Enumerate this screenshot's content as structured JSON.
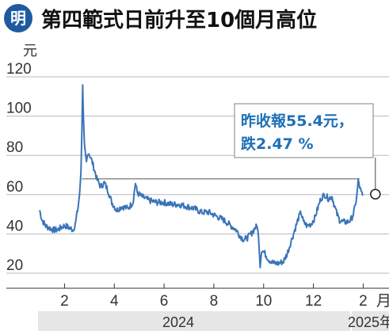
{
  "header": {
    "logo_text": "明",
    "title": "第四範式日前升至10個月高位"
  },
  "chart_data": {
    "type": "line",
    "title": "第四範式日前升至10個月高位",
    "ylabel": "元",
    "ylim": [
      14,
      124
    ],
    "yticks": [
      20,
      40,
      60,
      80,
      100,
      120
    ],
    "x_tick_labels": [
      "2",
      "4",
      "6",
      "8",
      "10",
      "12",
      "2",
      "月"
    ],
    "year_labels": [
      "2024",
      "2025年"
    ],
    "reference_line": 64,
    "annotation": {
      "line1": "昨收報55.4元，",
      "line2": "跌2.47 %"
    },
    "last_value": 55.4,
    "colors": {
      "line": "#3a74b8",
      "annotation_text": "#1f6fb5",
      "annotation_border": "#7f7f7f",
      "year_band": "#e6e6e6",
      "logo": "#1f5a9f"
    },
    "series": [
      {
        "values": [
          {
            "m": 1.0,
            "v": 48
          },
          {
            "m": 1.1,
            "v": 43
          },
          {
            "m": 1.25,
            "v": 40
          },
          {
            "m": 1.4,
            "v": 39
          },
          {
            "m": 1.55,
            "v": 38
          },
          {
            "m": 1.7,
            "v": 38
          },
          {
            "m": 1.85,
            "v": 39
          },
          {
            "m": 1.95,
            "v": 40
          },
          {
            "m": 2.05,
            "v": 40
          },
          {
            "m": 2.2,
            "v": 39
          },
          {
            "m": 2.35,
            "v": 38
          },
          {
            "m": 2.45,
            "v": 42
          },
          {
            "m": 2.55,
            "v": 50
          },
          {
            "m": 2.62,
            "v": 58
          },
          {
            "m": 2.66,
            "v": 68
          },
          {
            "m": 2.7,
            "v": 90
          },
          {
            "m": 2.73,
            "v": 113
          },
          {
            "m": 2.76,
            "v": 95
          },
          {
            "m": 2.8,
            "v": 80
          },
          {
            "m": 2.88,
            "v": 72
          },
          {
            "m": 2.95,
            "v": 78
          },
          {
            "m": 3.05,
            "v": 75
          },
          {
            "m": 3.15,
            "v": 71
          },
          {
            "m": 3.3,
            "v": 64
          },
          {
            "m": 3.45,
            "v": 60
          },
          {
            "m": 3.6,
            "v": 62
          },
          {
            "m": 3.75,
            "v": 58
          },
          {
            "m": 3.9,
            "v": 52
          },
          {
            "m": 4.1,
            "v": 48
          },
          {
            "m": 4.3,
            "v": 50
          },
          {
            "m": 4.55,
            "v": 49
          },
          {
            "m": 4.75,
            "v": 52
          },
          {
            "m": 4.85,
            "v": 62
          },
          {
            "m": 4.92,
            "v": 57
          },
          {
            "m": 5.1,
            "v": 55
          },
          {
            "m": 5.4,
            "v": 53
          },
          {
            "m": 5.7,
            "v": 52
          },
          {
            "m": 6.0,
            "v": 52
          },
          {
            "m": 6.3,
            "v": 51
          },
          {
            "m": 6.6,
            "v": 51
          },
          {
            "m": 6.9,
            "v": 50
          },
          {
            "m": 7.2,
            "v": 49
          },
          {
            "m": 7.5,
            "v": 47
          },
          {
            "m": 7.8,
            "v": 47
          },
          {
            "m": 8.1,
            "v": 45
          },
          {
            "m": 8.4,
            "v": 43
          },
          {
            "m": 8.7,
            "v": 40
          },
          {
            "m": 8.9,
            "v": 38
          },
          {
            "m": 9.05,
            "v": 35
          },
          {
            "m": 9.2,
            "v": 33
          },
          {
            "m": 9.35,
            "v": 34
          },
          {
            "m": 9.5,
            "v": 36
          },
          {
            "m": 9.65,
            "v": 39
          },
          {
            "m": 9.75,
            "v": 40
          },
          {
            "m": 9.82,
            "v": 30
          },
          {
            "m": 9.86,
            "v": 20
          },
          {
            "m": 9.92,
            "v": 28
          },
          {
            "m": 10.05,
            "v": 26
          },
          {
            "m": 10.2,
            "v": 23
          },
          {
            "m": 10.4,
            "v": 21
          },
          {
            "m": 10.6,
            "v": 21
          },
          {
            "m": 10.8,
            "v": 22
          },
          {
            "m": 10.95,
            "v": 26
          },
          {
            "m": 11.1,
            "v": 32
          },
          {
            "m": 11.25,
            "v": 38
          },
          {
            "m": 11.4,
            "v": 44
          },
          {
            "m": 11.5,
            "v": 47
          },
          {
            "m": 11.6,
            "v": 42
          },
          {
            "m": 11.75,
            "v": 40
          },
          {
            "m": 11.9,
            "v": 41
          },
          {
            "m": 12.05,
            "v": 44
          },
          {
            "m": 12.2,
            "v": 50
          },
          {
            "m": 12.3,
            "v": 54
          },
          {
            "m": 12.45,
            "v": 56
          },
          {
            "m": 12.6,
            "v": 54
          },
          {
            "m": 12.75,
            "v": 55
          },
          {
            "m": 12.85,
            "v": 50
          },
          {
            "m": 12.95,
            "v": 46
          },
          {
            "m": 13.05,
            "v": 43
          },
          {
            "m": 13.2,
            "v": 42
          },
          {
            "m": 13.35,
            "v": 42
          },
          {
            "m": 13.5,
            "v": 43
          },
          {
            "m": 13.6,
            "v": 46
          },
          {
            "m": 13.68,
            "v": 50
          },
          {
            "m": 13.75,
            "v": 56
          },
          {
            "m": 13.8,
            "v": 63
          },
          {
            "m": 13.86,
            "v": 60
          },
          {
            "m": 13.92,
            "v": 57
          },
          {
            "m": 13.98,
            "v": 55.4
          }
        ]
      }
    ]
  }
}
